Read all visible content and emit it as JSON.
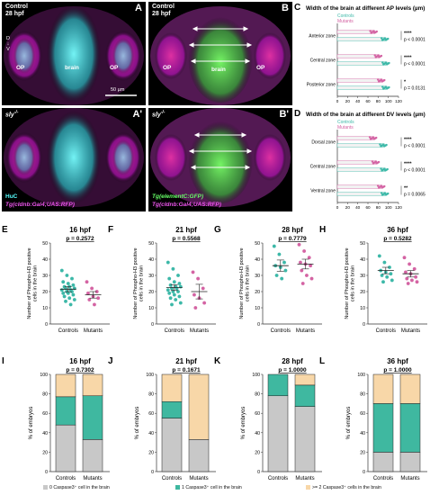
{
  "colors": {
    "controls": "#3cb8a8",
    "mutants": "#d463a3",
    "cat0": "#c8c8c8",
    "cat1": "#3fb8a0",
    "cat2": "#f8d7a8"
  },
  "micro": {
    "A": {
      "letter": "A",
      "cond": "Control",
      "stage": "28 hpf",
      "op": "OP",
      "brain": "brain",
      "axis": "D\n↓\nV",
      "scale": "50 µm"
    },
    "B": {
      "letter": "B",
      "cond": "Control",
      "stage": "28 hpf",
      "op": "OP",
      "brain": "brain"
    },
    "A2": {
      "letter": "A'",
      "cond": "sly",
      "cond_sup": "-/-",
      "marker1": "HuC",
      "marker2": "Tg(cldnb:Gal4;UAS:RFP)"
    },
    "B2": {
      "letter": "B'",
      "cond": "sly",
      "cond_sup": "-/-",
      "marker1": "Tg(elementC:GFP)",
      "marker2": "Tg(cldnb:Gal4;UAS:RFP)"
    }
  },
  "chart_data": [
    {
      "panel": "C",
      "type": "scatter",
      "title": "Width of the brain at different AP levels (µm)",
      "legend": [
        "Controls",
        "Mutants"
      ],
      "xlim": [
        0,
        120
      ],
      "xticks": [
        0,
        20,
        40,
        60,
        80,
        100,
        120
      ],
      "groups": [
        {
          "label": "Anterior zone",
          "stars": "****",
          "p": "p < 0.0001",
          "controls_mean": 93,
          "mutants_mean": 71
        },
        {
          "label": "Central zone",
          "stars": "****",
          "p": "p < 0.0001",
          "controls_mean": 95,
          "mutants_mean": 80
        },
        {
          "label": "Posterior zone",
          "stars": "*",
          "p": "p = 0.0131",
          "controls_mean": 95,
          "mutants_mean": 86
        }
      ]
    },
    {
      "panel": "D",
      "type": "scatter",
      "title": "Width of the brain at different DV levels (µm)",
      "legend": [
        "Controls",
        "Mutants"
      ],
      "xlim": [
        0,
        120
      ],
      "xticks": [
        0,
        20,
        40,
        60,
        80,
        100,
        120
      ],
      "groups": [
        {
          "label": "Dorsal zone",
          "stars": "****",
          "p": "p < 0.0001",
          "controls_mean": 90,
          "mutants_mean": 70
        },
        {
          "label": "Central zone",
          "stars": "****",
          "p": "p < 0.0001",
          "controls_mean": 92,
          "mutants_mean": 75
        },
        {
          "label": "Ventral zone",
          "stars": "**",
          "p": "p = 0.0065",
          "controls_mean": 93,
          "mutants_mean": 86
        }
      ]
    },
    {
      "panel": "E",
      "type": "scatter",
      "title": "16 hpf",
      "p": "p = 0.2572",
      "ylabel": "Number of Phospho-H3 positive cells in the brain",
      "ylim": [
        0,
        50
      ],
      "yticks": [
        0,
        10,
        20,
        30,
        40,
        50
      ],
      "categories": [
        "Controls",
        "Mutants"
      ],
      "series": [
        {
          "name": "Controls",
          "values": [
            33,
            30,
            28,
            26,
            25,
            24,
            23,
            23,
            22,
            22,
            21,
            21,
            20,
            20,
            19,
            19,
            18,
            17,
            16,
            15,
            14,
            12
          ],
          "mean": 21.5,
          "sem": 1.6
        },
        {
          "name": "Mutants",
          "values": [
            26,
            22,
            20,
            19,
            17,
            16,
            15,
            12
          ],
          "mean": 18,
          "sem": 2
        }
      ]
    },
    {
      "panel": "F",
      "type": "scatter",
      "title": "21 hpf",
      "p": "p = 0.5568",
      "ylabel": "Number of Phospho-H3 positive cells in the brain",
      "ylim": [
        0,
        50
      ],
      "yticks": [
        0,
        10,
        20,
        30,
        40,
        50
      ],
      "categories": [
        "Controls",
        "Mutants"
      ],
      "series": [
        {
          "name": "Controls",
          "values": [
            38,
            34,
            30,
            28,
            26,
            25,
            24,
            23,
            23,
            22,
            22,
            21,
            20,
            20,
            19,
            18,
            17,
            16,
            15,
            13,
            12
          ],
          "mean": 22.5,
          "sem": 1.8
        },
        {
          "name": "Mutants",
          "values": [
            32,
            28,
            22,
            18,
            16,
            13,
            10
          ],
          "mean": 20,
          "sem": 4.5
        }
      ]
    },
    {
      "panel": "G",
      "type": "scatter",
      "title": "28 hpf",
      "p": "p = 0.7779",
      "ylabel": "Number of Phospho-H3 positive cells in the brain",
      "ylim": [
        0,
        50
      ],
      "yticks": [
        0,
        10,
        20,
        30,
        40,
        50
      ],
      "categories": [
        "Controls",
        "Mutants"
      ],
      "series": [
        {
          "name": "Controls",
          "values": [
            48,
            43,
            38,
            36,
            35,
            33,
            30,
            28
          ],
          "mean": 36,
          "sem": 3.5
        },
        {
          "name": "Mutants",
          "values": [
            49,
            45,
            41,
            38,
            37,
            36,
            33,
            30,
            28,
            25
          ],
          "mean": 37,
          "sem": 3
        }
      ]
    },
    {
      "panel": "H",
      "type": "scatter",
      "title": "36 hpf",
      "p": "p = 0.5282",
      "ylabel": "Number of Phospho-H3 positive cells in the brain",
      "ylim": [
        0,
        50
      ],
      "yticks": [
        0,
        10,
        20,
        30,
        40,
        50
      ],
      "categories": [
        "Controls",
        "Mutants"
      ],
      "series": [
        {
          "name": "Controls",
          "values": [
            42,
            38,
            35,
            33,
            32,
            31,
            30,
            29,
            27,
            26
          ],
          "mean": 33,
          "sem": 2
        },
        {
          "name": "Mutants",
          "values": [
            41,
            37,
            34,
            32,
            31,
            29,
            28,
            27,
            26,
            25
          ],
          "mean": 31,
          "sem": 2
        }
      ]
    },
    {
      "panel": "I",
      "type": "bar",
      "title": "16 hpf",
      "p": "p = 0.7302",
      "ylabel": "% of embryos",
      "ylim": [
        0,
        100
      ],
      "yticks": [
        0,
        20,
        40,
        60,
        80,
        100
      ],
      "categories": [
        "Controls",
        "Mutants"
      ],
      "series": [
        {
          "name": "0 Caspase3⁺ cell in the brain",
          "values": [
            48,
            33
          ]
        },
        {
          "name": "1 Caspase3⁺ cell in the brain",
          "values": [
            29,
            45
          ]
        },
        {
          "name": ">= 2 Caspase3⁺ cells in the brain",
          "values": [
            23,
            22
          ]
        }
      ]
    },
    {
      "panel": "J",
      "type": "bar",
      "title": "21 hpf",
      "p": "p = 0.1671",
      "ylabel": "% of embryos",
      "ylim": [
        0,
        100
      ],
      "yticks": [
        0,
        20,
        40,
        60,
        80,
        100
      ],
      "categories": [
        "Controls",
        "Mutants"
      ],
      "series": [
        {
          "name": "0 Caspase3⁺ cell in the brain",
          "values": [
            55,
            33
          ]
        },
        {
          "name": "1 Caspase3⁺ cell in the brain",
          "values": [
            17,
            0
          ]
        },
        {
          "name": ">= 2 Caspase3⁺ cells in the brain",
          "values": [
            28,
            67
          ]
        }
      ]
    },
    {
      "panel": "K",
      "type": "bar",
      "title": "28 hpf",
      "p": "p = 1.0000",
      "ylabel": "% of embryos",
      "ylim": [
        0,
        100
      ],
      "yticks": [
        0,
        20,
        40,
        60,
        80,
        100
      ],
      "categories": [
        "Controls",
        "Mutants"
      ],
      "series": [
        {
          "name": "0 Caspase3⁺ cell in the brain",
          "values": [
            78,
            67
          ]
        },
        {
          "name": "1 Caspase3⁺ cell in the brain",
          "values": [
            22,
            22
          ]
        },
        {
          "name": ">= 2 Caspase3⁺ cells in the brain",
          "values": [
            0,
            11
          ]
        }
      ]
    },
    {
      "panel": "L",
      "type": "bar",
      "title": "36 hpf",
      "p": "p = 1.0000",
      "ylabel": "% of embryos",
      "ylim": [
        0,
        100
      ],
      "yticks": [
        0,
        20,
        40,
        60,
        80,
        100
      ],
      "categories": [
        "Controls",
        "Mutants"
      ],
      "series": [
        {
          "name": "0 Caspase3⁺ cell in the brain",
          "values": [
            20,
            20
          ]
        },
        {
          "name": "1 Caspase3⁺ cell in the brain",
          "values": [
            50,
            50
          ]
        },
        {
          "name": ">= 2 Caspase3⁺ cells in the brain",
          "values": [
            30,
            30
          ]
        }
      ]
    }
  ],
  "bottom_legend": [
    "0 Caspase3⁺ cell in the brain",
    "1 Caspase3⁺ cell in the brain",
    ">= 2 Caspase3⁺ cells in the brain"
  ]
}
